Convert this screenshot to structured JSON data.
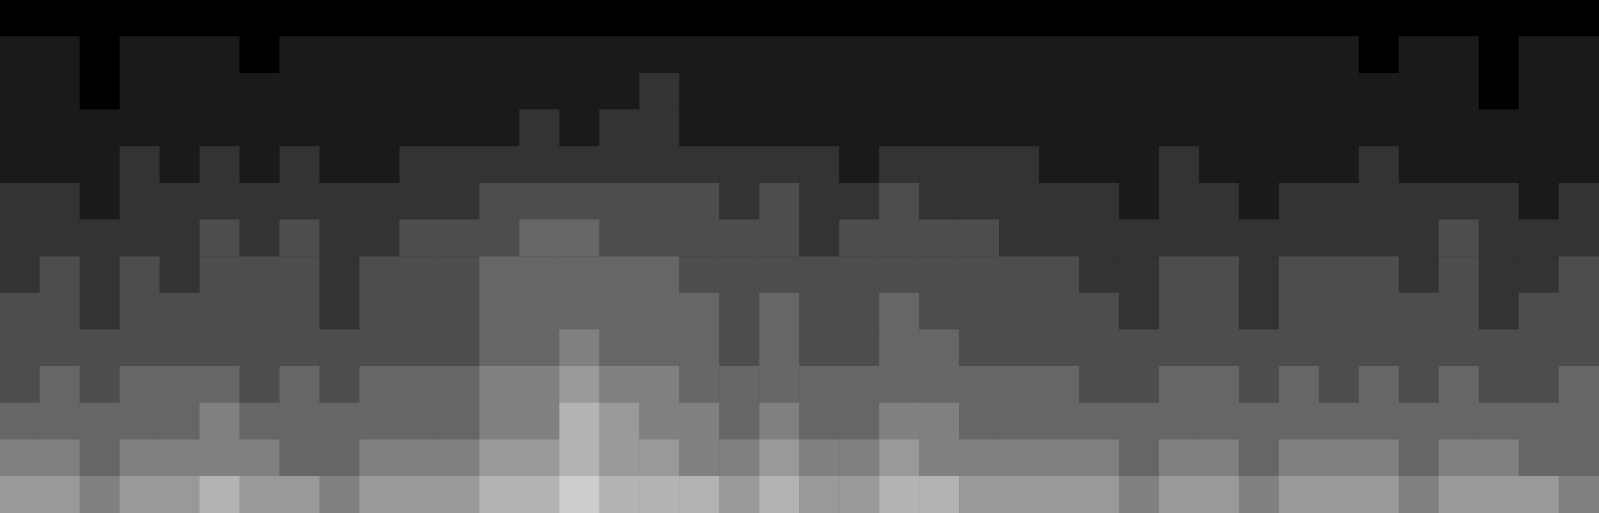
{
  "chart_data": {
    "type": "heatmap",
    "grid": false,
    "tick_labels": false,
    "zlim": [
      0,
      10
    ],
    "cells": [
      [
        6,
        6,
        5,
        6,
        6,
        7,
        6,
        6,
        5,
        6,
        6,
        6,
        7,
        7,
        8,
        7,
        7,
        7,
        6,
        7,
        6,
        6,
        7,
        7,
        6,
        6,
        6,
        6,
        5,
        6,
        6,
        5,
        6,
        6,
        6,
        5,
        6,
        6,
        6,
        5
      ],
      [
        5,
        5,
        4,
        5,
        5,
        5,
        5,
        4,
        4,
        5,
        5,
        5,
        6,
        6,
        7,
        6,
        6,
        5,
        5,
        6,
        5,
        5,
        6,
        5,
        5,
        5,
        5,
        5,
        4,
        5,
        5,
        4,
        5,
        5,
        5,
        4,
        5,
        5,
        4,
        4
      ],
      [
        4,
        4,
        4,
        4,
        4,
        5,
        4,
        4,
        4,
        4,
        4,
        4,
        5,
        5,
        7,
        6,
        5,
        5,
        4,
        5,
        4,
        4,
        5,
        5,
        4,
        4,
        4,
        4,
        4,
        4,
        4,
        4,
        4,
        4,
        4,
        4,
        4,
        4,
        4,
        4
      ],
      [
        3,
        4,
        3,
        4,
        4,
        4,
        3,
        4,
        3,
        4,
        4,
        4,
        5,
        5,
        6,
        5,
        5,
        4,
        4,
        4,
        4,
        4,
        4,
        4,
        4,
        4,
        4,
        3,
        3,
        4,
        4,
        3,
        4,
        3,
        4,
        3,
        4,
        3,
        3,
        4
      ],
      [
        3,
        3,
        3,
        3,
        3,
        3,
        3,
        3,
        3,
        3,
        3,
        3,
        4,
        4,
        5,
        4,
        4,
        4,
        3,
        4,
        3,
        3,
        4,
        4,
        3,
        3,
        3,
        3,
        3,
        3,
        3,
        3,
        3,
        3,
        3,
        3,
        3,
        3,
        3,
        3
      ],
      [
        3,
        3,
        2,
        3,
        3,
        3,
        3,
        3,
        2,
        3,
        3,
        3,
        4,
        4,
        4,
        4,
        4,
        4,
        3,
        4,
        3,
        3,
        4,
        3,
        3,
        3,
        3,
        3,
        2,
        3,
        3,
        2,
        3,
        3,
        3,
        3,
        3,
        2,
        3,
        3
      ],
      [
        2,
        3,
        2,
        3,
        2,
        3,
        3,
        3,
        2,
        3,
        3,
        3,
        4,
        4,
        4,
        4,
        4,
        3,
        3,
        3,
        3,
        3,
        3,
        3,
        3,
        3,
        3,
        2,
        2,
        3,
        3,
        2,
        3,
        3,
        3,
        2,
        3,
        2,
        2,
        3
      ],
      [
        2,
        2,
        2,
        2,
        2,
        3,
        2,
        3,
        2,
        2,
        3,
        3,
        3,
        4,
        4,
        3,
        3,
        3,
        3,
        3,
        2,
        3,
        3,
        3,
        3,
        2,
        2,
        2,
        2,
        2,
        2,
        2,
        2,
        2,
        2,
        2,
        3,
        2,
        2,
        2
      ],
      [
        2,
        2,
        1,
        2,
        2,
        2,
        2,
        2,
        2,
        2,
        2,
        2,
        3,
        3,
        3,
        3,
        3,
        3,
        2,
        3,
        2,
        2,
        3,
        2,
        2,
        2,
        2,
        2,
        1,
        2,
        2,
        1,
        2,
        2,
        2,
        2,
        2,
        2,
        1,
        2
      ],
      [
        1,
        1,
        1,
        2,
        1,
        2,
        1,
        2,
        1,
        1,
        2,
        2,
        2,
        2,
        2,
        2,
        2,
        2,
        2,
        2,
        2,
        1,
        2,
        2,
        2,
        2,
        1,
        1,
        1,
        2,
        1,
        1,
        1,
        1,
        2,
        1,
        1,
        1,
        1,
        1
      ],
      [
        1,
        1,
        1,
        1,
        1,
        1,
        1,
        1,
        1,
        1,
        1,
        1,
        1,
        2,
        1,
        2,
        2,
        1,
        1,
        1,
        1,
        1,
        1,
        1,
        1,
        1,
        1,
        1,
        1,
        1,
        1,
        1,
        1,
        1,
        1,
        1,
        1,
        1,
        1,
        1
      ],
      [
        1,
        1,
        0,
        1,
        1,
        1,
        1,
        1,
        1,
        1,
        1,
        1,
        1,
        1,
        1,
        1,
        2,
        1,
        1,
        1,
        1,
        1,
        1,
        1,
        1,
        1,
        1,
        1,
        1,
        1,
        1,
        1,
        1,
        1,
        1,
        1,
        1,
        0,
        1,
        1
      ],
      [
        1,
        1,
        0,
        1,
        1,
        1,
        0,
        1,
        1,
        1,
        1,
        1,
        1,
        1,
        1,
        1,
        1,
        1,
        1,
        1,
        1,
        1,
        1,
        1,
        1,
        1,
        1,
        1,
        1,
        1,
        1,
        1,
        1,
        1,
        0,
        1,
        1,
        0,
        1,
        1
      ],
      [
        0,
        0,
        0,
        0,
        0,
        0,
        0,
        0,
        0,
        0,
        0,
        0,
        0,
        0,
        0,
        0,
        0,
        0,
        0,
        0,
        0,
        0,
        0,
        0,
        0,
        0,
        0,
        0,
        0,
        0,
        0,
        0,
        0,
        0,
        0,
        0,
        0,
        0,
        0,
        0
      ]
    ]
  }
}
